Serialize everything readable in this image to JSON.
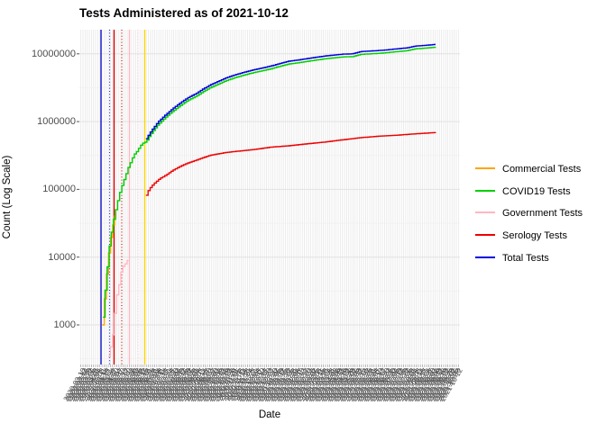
{
  "chart_data": {
    "type": "line",
    "title": "Tests Administered as of 2021-10-12",
    "xlabel": "Date",
    "ylabel": "Count (Log Scale)",
    "y_scale": "log10",
    "y_tick_labels": [
      "1000",
      "10000",
      "100000",
      "1000000",
      "10000000"
    ],
    "y_tick_values": [
      1000,
      10000,
      100000,
      1000000,
      10000000
    ],
    "ylim": [
      260,
      22000000
    ],
    "grid": {
      "background": "#ffffff",
      "major_color": "#e2e2e2",
      "minor_color": "#f0f0f0",
      "vertical_color": "#e7e7e7",
      "tick_mark_color": "#999999"
    },
    "x_axis": {
      "start_date": "2020-03-10",
      "end_date": "2021-10-12",
      "tick_count": 180,
      "label_angle_deg": 60
    },
    "legend": {
      "position": "right",
      "items": [
        {
          "label": "Commercial Tests",
          "color": "#FFA500"
        },
        {
          "label": "COVID19 Tests",
          "color": "#00D000"
        },
        {
          "label": "Government Tests",
          "color": "#FFB6C1"
        },
        {
          "label": "Serology Tests",
          "color": "#EE0000"
        },
        {
          "label": "Total Tests",
          "color": "#0000DD"
        }
      ]
    },
    "vlines": [
      {
        "series": "Total Tests",
        "style": "solid",
        "color": "#1111CC",
        "t": 0.0569
      },
      {
        "series": "Total Tests",
        "style": "dotted",
        "color": "#2222DD",
        "t": 0.0794
      },
      {
        "series": "Serology Tests",
        "style": "solid",
        "color": "#DD0000",
        "t": 0.0912
      },
      {
        "series": "Serology Tests",
        "style": "dotted",
        "color": "#DD0000",
        "t": 0.1114
      },
      {
        "series": "Government Tests",
        "style": "solid",
        "color": "#FFB6C1",
        "t": 0.1315
      },
      {
        "series": "Government Tests",
        "style": "dotted",
        "color": "#FFC4CE",
        "t": 0.154
      },
      {
        "series": "Commercial Tests",
        "style": "solid",
        "color": "#FFD700",
        "t": 0.1718
      }
    ],
    "series": [
      {
        "name": "Commercial Tests",
        "color": "#FFA500",
        "points": [
          [
            0.06,
            1000
          ],
          [
            0.064,
            1900
          ],
          [
            0.069,
            4300
          ],
          [
            0.076,
            11000
          ],
          [
            0.085,
            26000
          ],
          [
            0.095,
            45000
          ]
        ]
      },
      {
        "name": "Government Tests",
        "color": "#FFB6C1",
        "points": [
          [
            0.076,
            340
          ],
          [
            0.081,
            480
          ],
          [
            0.083,
            460
          ],
          [
            0.088,
            800
          ],
          [
            0.092,
            1400
          ],
          [
            0.097,
            2500
          ],
          [
            0.102,
            4200
          ],
          [
            0.104,
            3800
          ],
          [
            0.109,
            6000
          ],
          [
            0.114,
            7400
          ],
          [
            0.116,
            7000
          ],
          [
            0.121,
            8200
          ],
          [
            0.123,
            8800
          ],
          [
            0.128,
            9000
          ]
        ]
      },
      {
        "name": "COVID19 Tests",
        "color": "#00D000",
        "points": [
          [
            0.062,
            1300
          ],
          [
            0.066,
            2600
          ],
          [
            0.071,
            5500
          ],
          [
            0.078,
            14000
          ],
          [
            0.088,
            33000
          ],
          [
            0.095,
            50000
          ],
          [
            0.104,
            83000
          ],
          [
            0.111,
            112000
          ],
          [
            0.119,
            150000
          ],
          [
            0.128,
            210000
          ],
          [
            0.135,
            258000
          ],
          [
            0.142,
            320000
          ],
          [
            0.152,
            373000
          ],
          [
            0.159,
            437000
          ],
          [
            0.166,
            478000
          ],
          [
            0.173,
            500000
          ],
          [
            0.175,
            509000
          ],
          [
            0.185,
            627000
          ],
          [
            0.194,
            736000
          ],
          [
            0.206,
            900000
          ],
          [
            0.225,
            1140000
          ],
          [
            0.244,
            1410000
          ],
          [
            0.265,
            1730000
          ],
          [
            0.284,
            2050000
          ],
          [
            0.306,
            2360000
          ],
          [
            0.325,
            2770000
          ],
          [
            0.344,
            3180000
          ],
          [
            0.365,
            3590000
          ],
          [
            0.384,
            4000000
          ],
          [
            0.403,
            4360000
          ],
          [
            0.424,
            4730000
          ],
          [
            0.443,
            5050000
          ],
          [
            0.462,
            5360000
          ],
          [
            0.483,
            5680000
          ],
          [
            0.502,
            6000000
          ],
          [
            0.526,
            6550000
          ],
          [
            0.55,
            7090000
          ],
          [
            0.573,
            7360000
          ],
          [
            0.597,
            7730000
          ],
          [
            0.621,
            8090000
          ],
          [
            0.645,
            8450000
          ],
          [
            0.668,
            8730000
          ],
          [
            0.692,
            9000000
          ],
          [
            0.716,
            9090000
          ],
          [
            0.739,
            9820000
          ],
          [
            0.763,
            10000000
          ],
          [
            0.787,
            10180000
          ],
          [
            0.811,
            10450000
          ],
          [
            0.829,
            10730000
          ],
          [
            0.858,
            11090000
          ],
          [
            0.881,
            11820000
          ],
          [
            0.905,
            12090000
          ],
          [
            0.936,
            12550000
          ]
        ]
      },
      {
        "name": "Total Tests",
        "color": "#0000DD",
        "points": [
          [
            0.175,
            560000
          ],
          [
            0.185,
            690000
          ],
          [
            0.194,
            810000
          ],
          [
            0.206,
            990000
          ],
          [
            0.225,
            1250000
          ],
          [
            0.244,
            1550000
          ],
          [
            0.265,
            1900000
          ],
          [
            0.284,
            2250000
          ],
          [
            0.306,
            2600000
          ],
          [
            0.325,
            3050000
          ],
          [
            0.344,
            3500000
          ],
          [
            0.365,
            3950000
          ],
          [
            0.384,
            4400000
          ],
          [
            0.403,
            4800000
          ],
          [
            0.424,
            5200000
          ],
          [
            0.443,
            5550000
          ],
          [
            0.462,
            5900000
          ],
          [
            0.483,
            6250000
          ],
          [
            0.502,
            6600000
          ],
          [
            0.526,
            7200000
          ],
          [
            0.55,
            7800000
          ],
          [
            0.573,
            8100000
          ],
          [
            0.597,
            8500000
          ],
          [
            0.621,
            8900000
          ],
          [
            0.645,
            9300000
          ],
          [
            0.668,
            9600000
          ],
          [
            0.692,
            9900000
          ],
          [
            0.716,
            10000000
          ],
          [
            0.739,
            10800000
          ],
          [
            0.763,
            11000000
          ],
          [
            0.787,
            11200000
          ],
          [
            0.811,
            11500000
          ],
          [
            0.829,
            11800000
          ],
          [
            0.858,
            12200000
          ],
          [
            0.881,
            13000000
          ],
          [
            0.905,
            13300000
          ],
          [
            0.936,
            13800000
          ]
        ]
      },
      {
        "name": "Serology Tests",
        "color": "#EE0000",
        "points": [
          [
            0.175,
            82000
          ],
          [
            0.182,
            100000
          ],
          [
            0.194,
            120000
          ],
          [
            0.211,
            145000
          ],
          [
            0.225,
            160000
          ],
          [
            0.244,
            190000
          ],
          [
            0.265,
            220000
          ],
          [
            0.284,
            245000
          ],
          [
            0.306,
            270000
          ],
          [
            0.325,
            295000
          ],
          [
            0.344,
            320000
          ],
          [
            0.365,
            335000
          ],
          [
            0.384,
            350000
          ],
          [
            0.403,
            360000
          ],
          [
            0.424,
            370000
          ],
          [
            0.443,
            380000
          ],
          [
            0.462,
            390000
          ],
          [
            0.502,
            420000
          ],
          [
            0.55,
            440000
          ],
          [
            0.597,
            470000
          ],
          [
            0.645,
            500000
          ],
          [
            0.692,
            540000
          ],
          [
            0.739,
            580000
          ],
          [
            0.787,
            610000
          ],
          [
            0.834,
            630000
          ],
          [
            0.881,
            660000
          ],
          [
            0.936,
            690000
          ]
        ]
      }
    ]
  }
}
